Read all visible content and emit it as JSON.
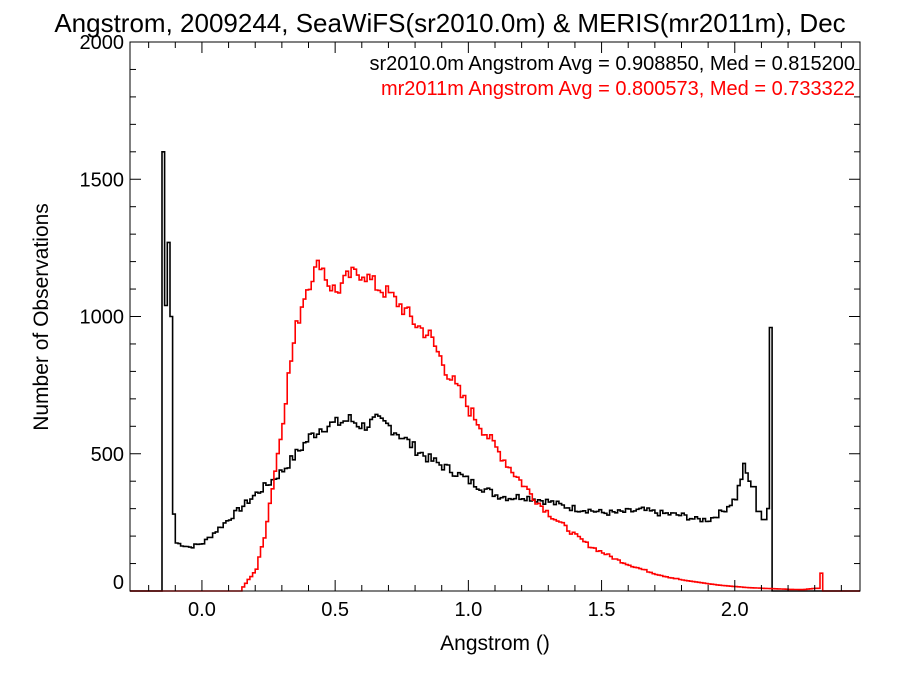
{
  "chart_data": {
    "type": "line",
    "step": true,
    "title": "Angstrom, 2009244, SeaWiFS(sr2010.0m) & MERIS(mr2011m), Dec",
    "xlabel": "Angstrom ()",
    "ylabel": "Number of Observations",
    "xlim": [
      -0.27,
      2.47
    ],
    "ylim": [
      0,
      2000
    ],
    "xticks": [
      0.0,
      0.5,
      1.0,
      1.5,
      2.0
    ],
    "xtick_labels": [
      "0.0",
      "0.5",
      "1.0",
      "1.5",
      "2.0"
    ],
    "yticks": [
      0,
      500,
      1000,
      1500,
      2000
    ],
    "ytick_labels": [
      "0",
      "500",
      "1000",
      "1500",
      "2000"
    ],
    "grid": false,
    "legend_position": "top-right",
    "annotations": [
      {
        "text": "sr2010.0m Angstrom Avg = 0.908850, Med = 0.815200",
        "color": "#000000"
      },
      {
        "text": "mr2011m Angstrom Avg = 0.800573, Med = 0.733322",
        "color": "#ff0000"
      }
    ],
    "series": [
      {
        "color": "#000000",
        "points": [
          [
            -0.27,
            0
          ],
          [
            -0.16,
            0
          ],
          [
            -0.15,
            1600
          ],
          [
            -0.14,
            1040
          ],
          [
            -0.13,
            1270
          ],
          [
            -0.12,
            1000
          ],
          [
            -0.11,
            280
          ],
          [
            -0.1,
            175
          ],
          [
            -0.05,
            160
          ],
          [
            0.0,
            175
          ],
          [
            0.05,
            220
          ],
          [
            0.1,
            265
          ],
          [
            0.15,
            310
          ],
          [
            0.2,
            355
          ],
          [
            0.25,
            395
          ],
          [
            0.3,
            440
          ],
          [
            0.35,
            500
          ],
          [
            0.4,
            560
          ],
          [
            0.45,
            600
          ],
          [
            0.5,
            610
          ],
          [
            0.55,
            625
          ],
          [
            0.6,
            600
          ],
          [
            0.65,
            620
          ],
          [
            0.7,
            600
          ],
          [
            0.75,
            560
          ],
          [
            0.8,
            515
          ],
          [
            0.85,
            480
          ],
          [
            0.9,
            455
          ],
          [
            0.95,
            430
          ],
          [
            1.0,
            400
          ],
          [
            1.05,
            375
          ],
          [
            1.1,
            350
          ],
          [
            1.15,
            340
          ],
          [
            1.2,
            345
          ],
          [
            1.25,
            335
          ],
          [
            1.3,
            325
          ],
          [
            1.35,
            310
          ],
          [
            1.4,
            300
          ],
          [
            1.45,
            295
          ],
          [
            1.5,
            285
          ],
          [
            1.55,
            285
          ],
          [
            1.6,
            290
          ],
          [
            1.65,
            295
          ],
          [
            1.7,
            285
          ],
          [
            1.75,
            280
          ],
          [
            1.8,
            275
          ],
          [
            1.85,
            260
          ],
          [
            1.9,
            260
          ],
          [
            1.95,
            290
          ],
          [
            2.0,
            340
          ],
          [
            2.03,
            450
          ],
          [
            2.06,
            380
          ],
          [
            2.08,
            290
          ],
          [
            2.1,
            260
          ],
          [
            2.12,
            300
          ],
          [
            2.13,
            960
          ],
          [
            2.14,
            0
          ],
          [
            2.47,
            0
          ]
        ]
      },
      {
        "color": "#ff0000",
        "points": [
          [
            -0.27,
            0
          ],
          [
            0.1,
            0
          ],
          [
            0.15,
            15
          ],
          [
            0.2,
            80
          ],
          [
            0.23,
            200
          ],
          [
            0.26,
            380
          ],
          [
            0.29,
            560
          ],
          [
            0.32,
            780
          ],
          [
            0.35,
            960
          ],
          [
            0.38,
            1080
          ],
          [
            0.41,
            1150
          ],
          [
            0.44,
            1200
          ],
          [
            0.47,
            1120
          ],
          [
            0.5,
            1090
          ],
          [
            0.55,
            1150
          ],
          [
            0.6,
            1160
          ],
          [
            0.65,
            1110
          ],
          [
            0.7,
            1080
          ],
          [
            0.75,
            1030
          ],
          [
            0.8,
            970
          ],
          [
            0.85,
            930
          ],
          [
            0.9,
            830
          ],
          [
            0.95,
            740
          ],
          [
            1.0,
            660
          ],
          [
            1.05,
            590
          ],
          [
            1.1,
            520
          ],
          [
            1.15,
            450
          ],
          [
            1.2,
            390
          ],
          [
            1.25,
            330
          ],
          [
            1.3,
            280
          ],
          [
            1.35,
            240
          ],
          [
            1.4,
            200
          ],
          [
            1.45,
            165
          ],
          [
            1.5,
            140
          ],
          [
            1.55,
            115
          ],
          [
            1.6,
            95
          ],
          [
            1.65,
            78
          ],
          [
            1.7,
            62
          ],
          [
            1.75,
            50
          ],
          [
            1.8,
            40
          ],
          [
            1.85,
            33
          ],
          [
            1.9,
            26
          ],
          [
            1.95,
            20
          ],
          [
            2.0,
            16
          ],
          [
            2.05,
            12
          ],
          [
            2.1,
            10
          ],
          [
            2.15,
            8
          ],
          [
            2.2,
            6
          ],
          [
            2.25,
            5
          ],
          [
            2.3,
            10
          ],
          [
            2.32,
            65
          ],
          [
            2.33,
            0
          ],
          [
            2.47,
            0
          ]
        ]
      }
    ]
  }
}
